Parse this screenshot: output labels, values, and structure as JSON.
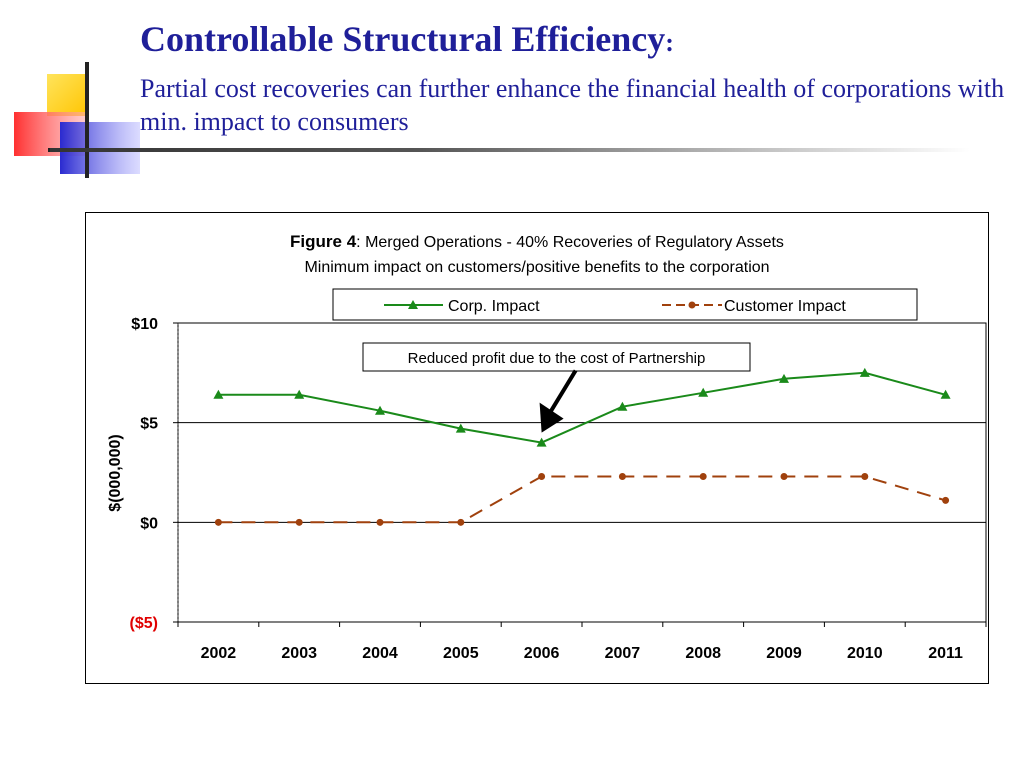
{
  "slide": {
    "title": "Controllable Structural Efficiency",
    "title_colon": ":",
    "subtitle": "Partial cost recoveries can further enhance the financial health of corporations with min. impact to consumers"
  },
  "colors": {
    "title_text": "#1f1f99",
    "corp_series": "#1a8a1a",
    "customer_series": "#a0410d",
    "negative_tick": "#e00000",
    "logo_yellow": "#ffd21f",
    "logo_red": "#ff4a4a",
    "logo_blue": "#3a3ad8"
  },
  "chart_data": {
    "type": "line",
    "title_bold": "Figure 4",
    "title_rest": ": Merged Operations - 40% Recoveries of Regulatory Assets",
    "subtitle": "Minimum impact on customers/positive benefits to the corporation",
    "ylabel": "$(000,000)",
    "xlabel": "",
    "categories": [
      "2002",
      "2003",
      "2004",
      "2005",
      "2006",
      "2007",
      "2008",
      "2009",
      "2010",
      "2011"
    ],
    "ylim": [
      -5,
      10
    ],
    "yticks": [
      {
        "value": 10,
        "label": "$10"
      },
      {
        "value": 5,
        "label": "$5"
      },
      {
        "value": 0,
        "label": "$0"
      },
      {
        "value": -5,
        "label": "($5)"
      }
    ],
    "gridlines": [
      5,
      0
    ],
    "legend_position": "top",
    "series": [
      {
        "name": "Corp. Impact",
        "marker": "triangle",
        "dash": "solid",
        "values": [
          6.4,
          6.4,
          5.6,
          4.7,
          4.0,
          5.8,
          6.5,
          7.2,
          7.5,
          6.4
        ]
      },
      {
        "name": "Customer Impact",
        "marker": "circle",
        "dash": "dashed",
        "values": [
          0.0,
          0.0,
          0.0,
          0.0,
          2.3,
          2.3,
          2.3,
          2.3,
          2.3,
          1.1
        ]
      }
    ],
    "annotation": {
      "text": "Reduced profit due to the cost of Partnership",
      "category": "2006",
      "series": "Corp. Impact"
    }
  }
}
